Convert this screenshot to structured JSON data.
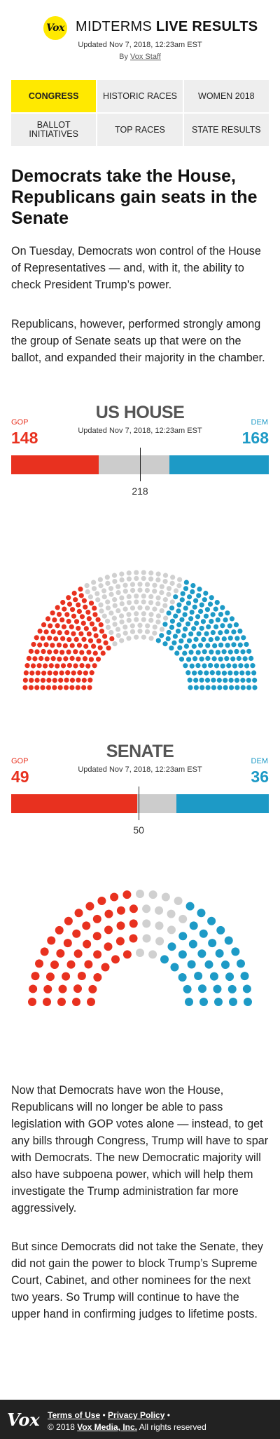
{
  "header": {
    "logo_text": "Vox",
    "title_prefix": "MIDTERMS ",
    "title_bold": "LIVE RESULTS",
    "updated": "Updated Nov 7, 2018, 12:23am EST",
    "byline_prefix": "By ",
    "byline_author": "Vox Staff"
  },
  "nav": {
    "items": [
      {
        "label": "CONGRESS",
        "active": true
      },
      {
        "label": "HISTORIC RACES",
        "active": false
      },
      {
        "label": "WOMEN 2018",
        "active": false
      },
      {
        "label": "BALLOT INITIATIVES",
        "active": false
      },
      {
        "label": "TOP RACES",
        "active": false
      },
      {
        "label": "STATE RESULTS",
        "active": false
      }
    ]
  },
  "article": {
    "headline": "Democrats take the House, Republicans gain seats in the Senate",
    "intro": [
      "On Tuesday, Democrats won control of the House of Representatives — and, with it, the ability to check President Trump’s power.",
      "Republicans, however, performed strongly among the group of Senate seats up that were on the ballot, and expanded their majority in the chamber."
    ],
    "outro": [
      "Now that Democrats have won the House, Republicans will no longer be able to pass legislation with GOP votes alone — instead, to get any bills through Congress, Trump will have to spar with Democrats. The new Democratic majority will also have subpoena power, which will help them investigate the Trump administration far more aggressively.",
      "But since Democrats did not take the Senate, they did not gain the power to block Trump’s Supreme Court, Cabinet, and other nominees for the next two years. So Trump will continue to have the upper hand in confirming judges to lifetime posts."
    ]
  },
  "house": {
    "title": "US HOUSE",
    "updated": "Updated Nov 7, 2018, 12:23am EST",
    "gop_label": "GOP",
    "dem_label": "DEM",
    "gop": 148,
    "dem": 168,
    "total": 435,
    "majority": 218
  },
  "senate": {
    "title": "SENATE",
    "updated": "Updated Nov 7, 2018, 12:23am EST",
    "gop_label": "GOP",
    "dem_label": "DEM",
    "gop": 49,
    "dem": 36,
    "total": 100,
    "majority": 50
  },
  "colors": {
    "gop": "#e8311f",
    "dem": "#1d9ac6",
    "undecided_bar": "#cccccc",
    "undecided_seat": "#d0d0d0",
    "accent": "#ffe900"
  },
  "footer": {
    "logo_text": "Vox",
    "terms": "Terms of Use",
    "separator": " • ",
    "privacy": "Privacy Policy",
    "trailing": " •",
    "copyright_prefix": "© 2018 ",
    "company": "Vox Media, Inc.",
    "copyright_suffix": " All rights reserved"
  }
}
